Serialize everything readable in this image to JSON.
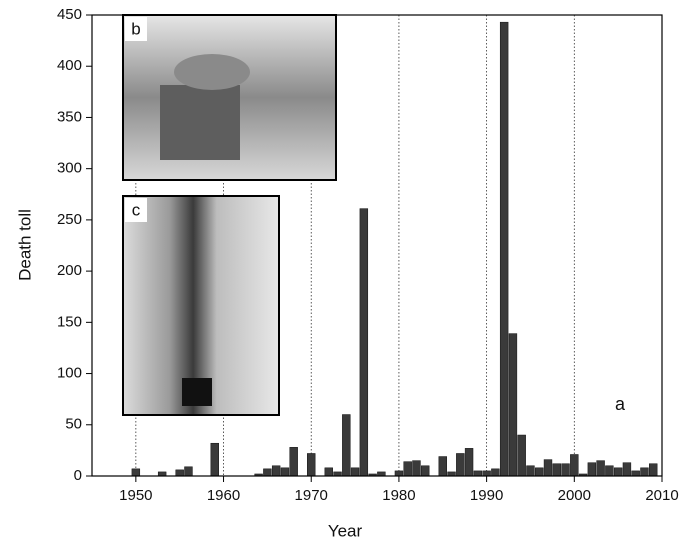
{
  "chart_data": {
    "type": "bar",
    "x_label": "Year",
    "y_label": "Death toll",
    "annotations": [
      "a",
      "b",
      "c"
    ],
    "x": [
      1950,
      1953,
      1955,
      1956,
      1959,
      1964,
      1965,
      1966,
      1967,
      1968,
      1970,
      1972,
      1973,
      1974,
      1975,
      1976,
      1977,
      1978,
      1980,
      1981,
      1982,
      1983,
      1985,
      1986,
      1987,
      1988,
      1989,
      1990,
      1991,
      1992,
      1993,
      1994,
      1995,
      1996,
      1997,
      1998,
      1999,
      2000,
      2001,
      2002,
      2003,
      2004,
      2005,
      2006,
      2007,
      2008,
      2009
    ],
    "values": [
      7,
      4,
      6,
      9,
      32,
      2,
      7,
      10,
      8,
      28,
      22,
      8,
      4,
      60,
      8,
      261,
      2,
      4,
      5,
      14,
      15,
      10,
      19,
      4,
      22,
      27,
      5,
      5,
      7,
      443,
      139,
      40,
      10,
      8,
      16,
      12,
      12,
      21,
      2,
      13,
      15,
      10,
      8,
      13,
      5,
      8,
      12
    ],
    "color": "#3a3a3a",
    "xlim": [
      1945,
      2010
    ],
    "xticks": [
      1950,
      1960,
      1970,
      1980,
      1990,
      2000,
      2010
    ],
    "ylim": [
      0,
      450
    ],
    "yticks": [
      0,
      50,
      100,
      150,
      200,
      250,
      300,
      350,
      400,
      450
    ],
    "grid": true
  }
}
